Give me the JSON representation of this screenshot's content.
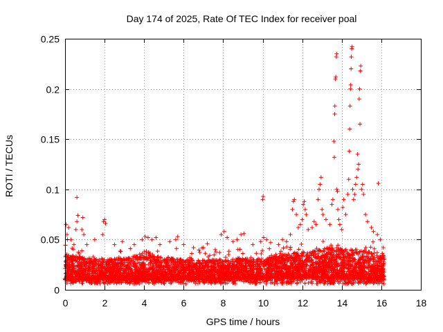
{
  "chart_data": {
    "type": "scatter",
    "title": "Day 174 of 2025, Rate Of TEC Index for receiver poal",
    "xlabel": "GPS time / hours",
    "ylabel": "ROTI / TECUs",
    "xlim": [
      0,
      18
    ],
    "ylim": [
      0,
      0.25
    ],
    "x_ticks": [
      0,
      2,
      4,
      6,
      8,
      10,
      12,
      14,
      16,
      18
    ],
    "y_ticks": [
      0,
      0.05,
      0.1,
      0.15,
      0.2,
      0.25
    ],
    "x_tick_labels": [
      "0",
      "2",
      "4",
      "6",
      "8",
      "10",
      "12",
      "14",
      "16",
      "18"
    ],
    "y_tick_labels": [
      "0",
      "0.05",
      "0.1",
      "0.15",
      "0.2",
      "0.25"
    ],
    "grid": true,
    "marker": "+",
    "color": "#ff0000",
    "series": [
      {
        "name": "poal",
        "data_span_hours": [
          0,
          16.15
        ],
        "band_upper": [
          [
            0,
            0.035
          ],
          [
            2,
            0.03
          ],
          [
            4,
            0.035
          ],
          [
            6,
            0.03
          ],
          [
            8,
            0.03
          ],
          [
            10,
            0.032
          ],
          [
            12,
            0.038
          ],
          [
            13,
            0.042
          ],
          [
            14,
            0.042
          ],
          [
            15,
            0.04
          ],
          [
            16.15,
            0.035
          ]
        ],
        "band_lower": [
          [
            0,
            0.01
          ],
          [
            4,
            0.01
          ],
          [
            8,
            0.01
          ],
          [
            12,
            0.012
          ],
          [
            16.15,
            0.01
          ]
        ],
        "points": [
          [
            0.05,
            0.065
          ],
          [
            0.1,
            0.055
          ],
          [
            0.12,
            0.05
          ],
          [
            0.18,
            0.062
          ],
          [
            0.3,
            0.05
          ],
          [
            0.45,
            0.045
          ],
          [
            0.55,
            0.06
          ],
          [
            0.6,
            0.068
          ],
          [
            0.65,
            0.074
          ],
          [
            0.6,
            0.092
          ],
          [
            0.85,
            0.06
          ],
          [
            0.9,
            0.072
          ],
          [
            0.95,
            0.055
          ],
          [
            1.1,
            0.045
          ],
          [
            1.5,
            0.05
          ],
          [
            1.9,
            0.055
          ],
          [
            1.95,
            0.068
          ],
          [
            2.0,
            0.07
          ],
          [
            2.05,
            0.066
          ],
          [
            2.5,
            0.045
          ],
          [
            2.9,
            0.048
          ],
          [
            3.5,
            0.045
          ],
          [
            3.9,
            0.05
          ],
          [
            4.05,
            0.053
          ],
          [
            4.2,
            0.052
          ],
          [
            4.4,
            0.05
          ],
          [
            4.6,
            0.052
          ],
          [
            4.8,
            0.045
          ],
          [
            5.3,
            0.048
          ],
          [
            5.6,
            0.05
          ],
          [
            5.7,
            0.053
          ],
          [
            6.0,
            0.045
          ],
          [
            6.5,
            0.042
          ],
          [
            7.0,
            0.042
          ],
          [
            7.2,
            0.046
          ],
          [
            7.6,
            0.04
          ],
          [
            7.9,
            0.055
          ],
          [
            8.05,
            0.058
          ],
          [
            8.2,
            0.052
          ],
          [
            8.5,
            0.048
          ],
          [
            8.7,
            0.05
          ],
          [
            8.9,
            0.055
          ],
          [
            9.05,
            0.056
          ],
          [
            9.5,
            0.045
          ],
          [
            9.9,
            0.048
          ],
          [
            10.0,
            0.09
          ],
          [
            10.02,
            0.093
          ],
          [
            10.05,
            0.052
          ],
          [
            10.2,
            0.05
          ],
          [
            10.4,
            0.047
          ],
          [
            10.8,
            0.045
          ],
          [
            11.0,
            0.05
          ],
          [
            11.2,
            0.048
          ],
          [
            11.4,
            0.055
          ],
          [
            11.5,
            0.08
          ],
          [
            11.55,
            0.088
          ],
          [
            11.6,
            0.09
          ],
          [
            11.7,
            0.075
          ],
          [
            11.8,
            0.062
          ],
          [
            11.9,
            0.065
          ],
          [
            12.0,
            0.07
          ],
          [
            12.05,
            0.085
          ],
          [
            12.1,
            0.088
          ],
          [
            12.15,
            0.08
          ],
          [
            12.2,
            0.075
          ],
          [
            12.3,
            0.06
          ],
          [
            12.5,
            0.062
          ],
          [
            12.6,
            0.068
          ],
          [
            12.7,
            0.065
          ],
          [
            12.8,
            0.09
          ],
          [
            12.85,
            0.1
          ],
          [
            12.9,
            0.105
          ],
          [
            12.95,
            0.112
          ],
          [
            13.0,
            0.08
          ],
          [
            13.05,
            0.075
          ],
          [
            13.2,
            0.07
          ],
          [
            13.4,
            0.065
          ],
          [
            13.5,
            0.085
          ],
          [
            13.55,
            0.09
          ],
          [
            13.6,
            0.148
          ],
          [
            13.62,
            0.132
          ],
          [
            13.64,
            0.175
          ],
          [
            13.65,
            0.183
          ],
          [
            13.68,
            0.21
          ],
          [
            13.7,
            0.212
          ],
          [
            13.72,
            0.232
          ],
          [
            13.74,
            0.235
          ],
          [
            13.75,
            0.1
          ],
          [
            13.78,
            0.098
          ],
          [
            13.8,
            0.08
          ],
          [
            13.85,
            0.07
          ],
          [
            13.9,
            0.065
          ],
          [
            14.0,
            0.06
          ],
          [
            14.05,
            0.082
          ],
          [
            14.1,
            0.09
          ],
          [
            14.2,
            0.075
          ],
          [
            14.3,
            0.095
          ],
          [
            14.35,
            0.11
          ],
          [
            14.38,
            0.138
          ],
          [
            14.4,
            0.16
          ],
          [
            14.42,
            0.183
          ],
          [
            14.44,
            0.2
          ],
          [
            14.45,
            0.204
          ],
          [
            14.47,
            0.22
          ],
          [
            14.48,
            0.232
          ],
          [
            14.5,
            0.24
          ],
          [
            14.52,
            0.242
          ],
          [
            14.55,
            0.1
          ],
          [
            14.6,
            0.09
          ],
          [
            14.65,
            0.095
          ],
          [
            14.7,
            0.105
          ],
          [
            14.75,
            0.112
          ],
          [
            14.8,
            0.135
          ],
          [
            14.82,
            0.12
          ],
          [
            14.85,
            0.125
          ],
          [
            14.88,
            0.19
          ],
          [
            14.9,
            0.2
          ],
          [
            14.92,
            0.165
          ],
          [
            14.94,
            0.218
          ],
          [
            14.96,
            0.223
          ],
          [
            15.0,
            0.1
          ],
          [
            15.05,
            0.105
          ],
          [
            15.1,
            0.095
          ],
          [
            15.2,
            0.075
          ],
          [
            15.3,
            0.068
          ],
          [
            15.5,
            0.062
          ],
          [
            15.6,
            0.058
          ],
          [
            15.8,
            0.055
          ],
          [
            15.85,
            0.106
          ],
          [
            15.95,
            0.05
          ],
          [
            16.1,
            0.042
          ]
        ]
      }
    ]
  }
}
